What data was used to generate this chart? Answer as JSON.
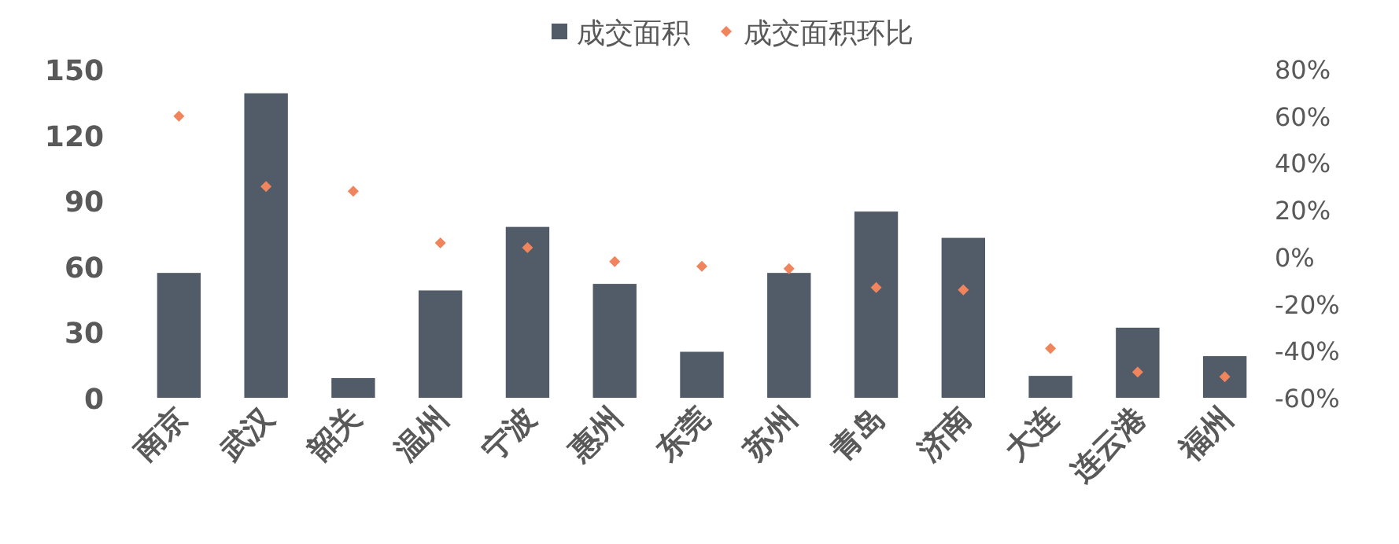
{
  "chart_data": {
    "type": "bar",
    "legend": "top",
    "grid": false,
    "categories": [
      "南京",
      "武汉",
      "韶关",
      "温州",
      "宁波",
      "惠州",
      "东莞",
      "苏州",
      "青岛",
      "济南",
      "大连",
      "连云港",
      "福州"
    ],
    "series": [
      {
        "name": "成交面积",
        "color": "#525c68",
        "values": [
          57,
          139,
          9,
          49,
          78,
          52,
          21,
          57,
          85,
          73,
          10,
          32,
          19
        ]
      },
      {
        "name": "成交面积环比",
        "type": "scatter",
        "axis": "y2",
        "marker": "diamond",
        "color": "#f0845c",
        "values": [
          60,
          30,
          28,
          6,
          4,
          -2,
          -4,
          -5,
          -13,
          -14,
          -39,
          -49,
          -51
        ]
      }
    ],
    "ylim": [
      0,
      150
    ],
    "yticks": [
      0,
      30,
      60,
      90,
      120,
      150
    ],
    "y2lim": [
      -60,
      80
    ],
    "y2ticks": [
      {
        "value": -60,
        "label": "-60%"
      },
      {
        "value": -40,
        "label": "-40%"
      },
      {
        "value": -20,
        "label": "-20%"
      },
      {
        "value": 0,
        "label": "0%"
      },
      {
        "value": 20,
        "label": "20%"
      },
      {
        "value": 40,
        "label": "40%"
      },
      {
        "value": 60,
        "label": "60%"
      },
      {
        "value": 80,
        "label": "80%"
      }
    ]
  }
}
